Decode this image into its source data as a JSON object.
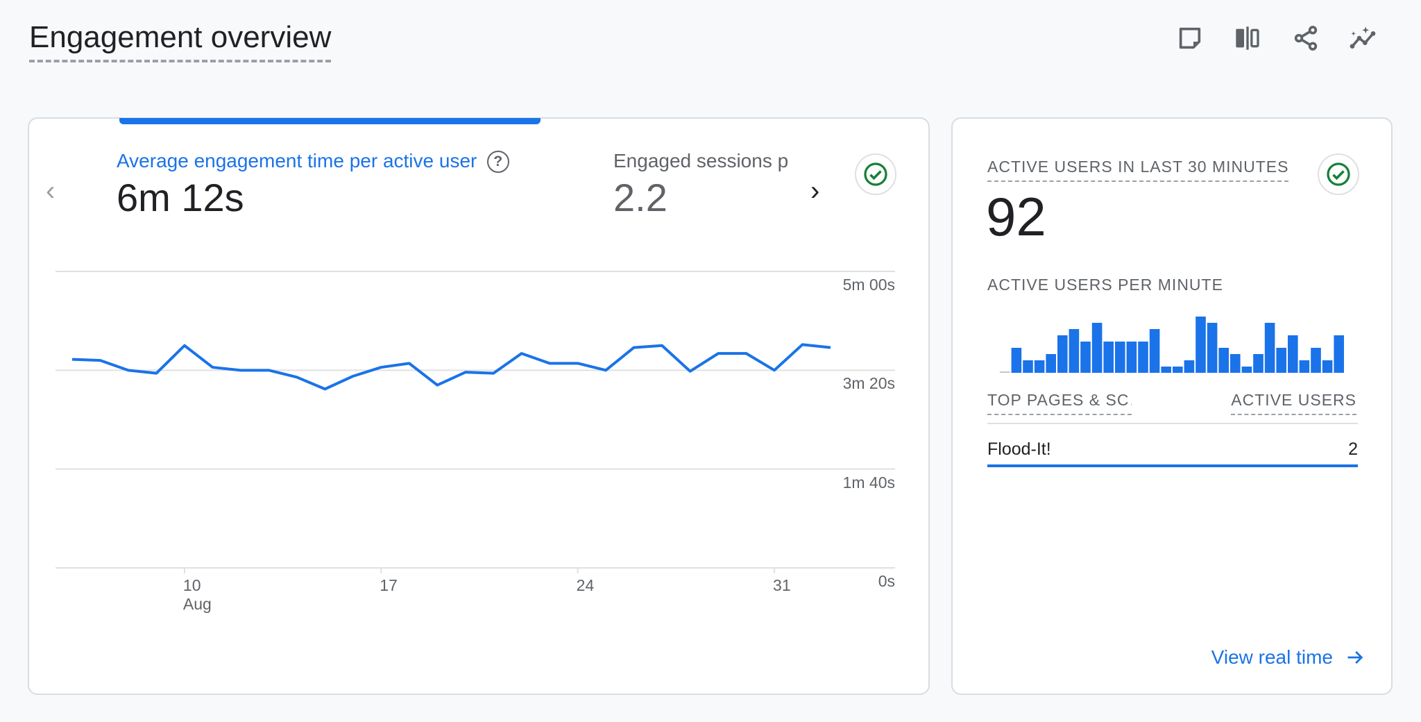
{
  "header": {
    "title": "Engagement overview",
    "icons": [
      "notes-icon",
      "compare-icon",
      "share-icon",
      "insights-icon"
    ]
  },
  "left_card": {
    "metrics": [
      {
        "label": "Average engagement time per active user",
        "value": "6m 12s",
        "active": true
      },
      {
        "label": "Engaged sessions p",
        "value": "2.2",
        "active": false
      }
    ],
    "accent": "#1a73e8"
  },
  "right_card": {
    "active_label": "ACTIVE USERS IN LAST 30 MINUTES",
    "active_value": "92",
    "per_minute_label": "ACTIVE USERS PER MINUTE",
    "table_header_left": "TOP PAGES & SC…",
    "table_header_right": "ACTIVE USERS",
    "rows": [
      {
        "name": "Flood-It!",
        "value": "2"
      }
    ],
    "view_link": "View real time"
  },
  "chart_data": [
    {
      "type": "line",
      "title": "Average engagement time per active user",
      "x": [
        "Aug 6",
        "Aug 7",
        "Aug 8",
        "Aug 9",
        "Aug 10",
        "Aug 11",
        "Aug 12",
        "Aug 13",
        "Aug 14",
        "Aug 15",
        "Aug 16",
        "Aug 17",
        "Aug 18",
        "Aug 19",
        "Aug 20",
        "Aug 21",
        "Aug 22",
        "Aug 23",
        "Aug 24",
        "Aug 25",
        "Aug 26",
        "Aug 27",
        "Aug 28",
        "Aug 29",
        "Aug 30",
        "Aug 31",
        "Sep 1",
        "Sep 2"
      ],
      "values_seconds": [
        211,
        210,
        200,
        197,
        225,
        203,
        200,
        200,
        193,
        181,
        194,
        203,
        207,
        185,
        198,
        197,
        217,
        207,
        207,
        200,
        223,
        225,
        199,
        217,
        217,
        200,
        226,
        223
      ],
      "ylim": [
        0,
        300
      ],
      "y_ticks": [
        {
          "value": 300,
          "label": "5m 00s"
        },
        {
          "value": 200,
          "label": "3m 20s"
        },
        {
          "value": 100,
          "label": "1m 40s"
        },
        {
          "value": 0,
          "label": "0s"
        }
      ],
      "x_ticks": [
        {
          "index": 4,
          "label": "10",
          "sub": "Aug"
        },
        {
          "index": 11,
          "label": "17",
          "sub": ""
        },
        {
          "index": 18,
          "label": "24",
          "sub": ""
        },
        {
          "index": 25,
          "label": "31",
          "sub": ""
        }
      ],
      "grid": true,
      "color": "#1a73e8"
    },
    {
      "type": "bar",
      "title": "ACTIVE USERS PER MINUTE",
      "values": [
        0,
        4,
        2,
        2,
        3,
        6,
        7,
        5,
        8,
        5,
        5,
        5,
        5,
        7,
        1,
        1,
        2,
        9,
        8,
        4,
        3,
        1,
        3,
        8,
        4,
        6,
        2,
        4,
        2,
        6
      ],
      "color": "#1a73e8"
    }
  ]
}
